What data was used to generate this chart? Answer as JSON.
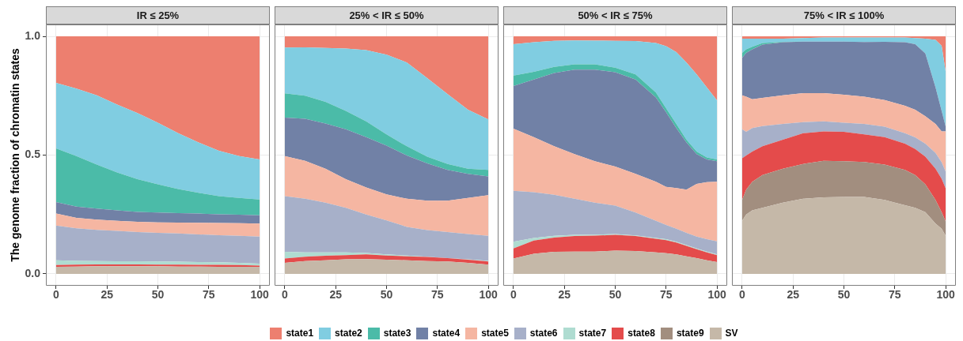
{
  "chart_data": [
    {
      "type": "area",
      "title": "IR ≤ 25%",
      "ylabel": "The genome fraction of chromatin states",
      "stacked": true,
      "grid": true,
      "legend": "bottom",
      "x": [
        0,
        10,
        20,
        30,
        40,
        50,
        60,
        70,
        80,
        90,
        100
      ],
      "xlim": [
        -5,
        105
      ],
      "xticks": [
        0,
        25,
        50,
        75,
        100
      ],
      "ylim": [
        -0.05,
        1.05
      ],
      "yticks": [
        {
          "value": 0,
          "label": "0.0"
        },
        0.5,
        {
          "value": 1,
          "label": "1.0"
        }
      ],
      "series": [
        {
          "name": "SV",
          "color": "#c5b8a8",
          "values": [
            0.03,
            0.031,
            0.032,
            0.032,
            0.032,
            0.032,
            0.031,
            0.031,
            0.03,
            0.03,
            0.03
          ]
        },
        {
          "name": "state8",
          "color": "#e44b4b",
          "values": [
            0.007,
            0.008,
            0.008,
            0.008,
            0.008,
            0.007,
            0.008,
            0.007,
            0.008,
            0.007,
            0.005
          ]
        },
        {
          "name": "state7",
          "color": "#afdcd1",
          "values": [
            0.02,
            0.016,
            0.014,
            0.013,
            0.013,
            0.013,
            0.012,
            0.012,
            0.011,
            0.009,
            0.008
          ]
        },
        {
          "name": "state6",
          "color": "#a7b0c9",
          "values": [
            0.146,
            0.137,
            0.131,
            0.128,
            0.123,
            0.121,
            0.119,
            0.116,
            0.114,
            0.114,
            0.114
          ]
        },
        {
          "name": "state5",
          "color": "#f5b6a2",
          "values": [
            0.051,
            0.044,
            0.043,
            0.042,
            0.043,
            0.044,
            0.046,
            0.049,
            0.051,
            0.053,
            0.055
          ]
        },
        {
          "name": "state4",
          "color": "#7181a6",
          "values": [
            0.048,
            0.047,
            0.047,
            0.044,
            0.042,
            0.041,
            0.04,
            0.039,
            0.037,
            0.036,
            0.035
          ]
        },
        {
          "name": "state3",
          "color": "#4bbba8",
          "values": [
            0.226,
            0.213,
            0.185,
            0.16,
            0.138,
            0.119,
            0.101,
            0.087,
            0.076,
            0.071,
            0.066
          ]
        },
        {
          "name": "state2",
          "color": "#80cde1",
          "values": [
            0.276,
            0.284,
            0.292,
            0.286,
            0.278,
            0.259,
            0.235,
            0.212,
            0.191,
            0.176,
            0.169
          ]
        },
        {
          "name": "state1",
          "color": "#ed7f6f",
          "values": [
            0.196,
            0.22,
            0.248,
            0.287,
            0.323,
            0.364,
            0.408,
            0.447,
            0.482,
            0.504,
            0.518
          ]
        }
      ]
    },
    {
      "type": "area",
      "title": "25% < IR ≤ 50%",
      "stacked": true,
      "grid": true,
      "tick_labels": "x",
      "x": [
        0,
        10,
        20,
        30,
        40,
        50,
        60,
        70,
        80,
        90,
        100
      ],
      "xlim": [
        -5,
        105
      ],
      "xticks": [
        0,
        25,
        50,
        75,
        100
      ],
      "ylim": [
        -0.05,
        1.05
      ],
      "yticks": [
        0,
        0.5,
        1
      ],
      "series": [
        {
          "name": "SV",
          "color": "#c5b8a8",
          "values": [
            0.046,
            0.054,
            0.057,
            0.061,
            0.062,
            0.06,
            0.057,
            0.054,
            0.052,
            0.046,
            0.039
          ]
        },
        {
          "name": "state8",
          "color": "#e44b4b",
          "values": [
            0.019,
            0.018,
            0.019,
            0.018,
            0.02,
            0.017,
            0.017,
            0.017,
            0.014,
            0.014,
            0.013
          ]
        },
        {
          "name": "state7",
          "color": "#afdcd1",
          "values": [
            0.028,
            0.018,
            0.014,
            0.011,
            0.006,
            0.005,
            0.003,
            0.001,
            0,
            0.001,
            0.003
          ]
        },
        {
          "name": "state6",
          "color": "#a7b0c9",
          "values": [
            0.234,
            0.226,
            0.21,
            0.188,
            0.162,
            0.143,
            0.121,
            0.112,
            0.11,
            0.107,
            0.105
          ]
        },
        {
          "name": "state5",
          "color": "#f5b6a2",
          "values": [
            0.169,
            0.16,
            0.143,
            0.121,
            0.114,
            0.11,
            0.118,
            0.124,
            0.132,
            0.152,
            0.171
          ]
        },
        {
          "name": "state4",
          "color": "#7181a6",
          "values": [
            0.162,
            0.177,
            0.19,
            0.21,
            0.212,
            0.205,
            0.182,
            0.157,
            0.13,
            0.101,
            0.079
          ]
        },
        {
          "name": "state3",
          "color": "#4bbba8",
          "values": [
            0.102,
            0.097,
            0.091,
            0.077,
            0.066,
            0.047,
            0.039,
            0.028,
            0.025,
            0.022,
            0.028
          ]
        },
        {
          "name": "state2",
          "color": "#80cde1",
          "values": [
            0.193,
            0.204,
            0.227,
            0.263,
            0.3,
            0.336,
            0.353,
            0.331,
            0.294,
            0.248,
            0.212
          ]
        },
        {
          "name": "state1",
          "color": "#ed7f6f",
          "values": [
            0.047,
            0.046,
            0.049,
            0.051,
            0.058,
            0.077,
            0.11,
            0.176,
            0.243,
            0.309,
            0.35
          ]
        }
      ]
    },
    {
      "type": "area",
      "title": "50% < IR ≤ 75%",
      "stacked": true,
      "grid": true,
      "tick_labels": "x",
      "x": [
        0,
        10,
        20,
        30,
        40,
        50,
        60,
        70,
        75,
        80,
        85,
        90,
        95,
        100
      ],
      "xlim": [
        -5,
        105
      ],
      "xticks": [
        0,
        25,
        50,
        75,
        100
      ],
      "ylim": [
        -0.05,
        1.05
      ],
      "yticks": [
        0,
        0.5,
        1
      ],
      "series": [
        {
          "name": "SV",
          "color": "#c5b8a8",
          "values": [
            0.065,
            0.085,
            0.093,
            0.094,
            0.094,
            0.098,
            0.096,
            0.09,
            0.087,
            0.082,
            0.074,
            0.066,
            0.057,
            0.05
          ]
        },
        {
          "name": "state8",
          "color": "#e44b4b",
          "values": [
            0.042,
            0.055,
            0.06,
            0.065,
            0.067,
            0.066,
            0.063,
            0.058,
            0.055,
            0.05,
            0.044,
            0.038,
            0.033,
            0.029
          ]
        },
        {
          "name": "state7",
          "color": "#afdcd1",
          "values": [
            0.028,
            0.011,
            0.007,
            0.005,
            0.004,
            0.004,
            0.003,
            0.003,
            0.004,
            0.003,
            0.003,
            0.003,
            0.004,
            0.003
          ]
        },
        {
          "name": "state6",
          "color": "#a7b0c9",
          "values": [
            0.215,
            0.193,
            0.173,
            0.152,
            0.135,
            0.119,
            0.096,
            0.072,
            0.06,
            0.055,
            0.052,
            0.05,
            0.052,
            0.055
          ]
        },
        {
          "name": "state5",
          "color": "#f5b6a2",
          "values": [
            0.261,
            0.232,
            0.204,
            0.188,
            0.174,
            0.165,
            0.163,
            0.165,
            0.16,
            0.171,
            0.182,
            0.222,
            0.24,
            0.251
          ]
        },
        {
          "name": "state4",
          "color": "#7181a6",
          "values": [
            0.18,
            0.242,
            0.309,
            0.356,
            0.386,
            0.397,
            0.397,
            0.355,
            0.314,
            0.253,
            0.198,
            0.125,
            0.096,
            0.086
          ]
        },
        {
          "name": "state3",
          "color": "#4bbba8",
          "values": [
            0.044,
            0.033,
            0.025,
            0.022,
            0.022,
            0.019,
            0.022,
            0.02,
            0.017,
            0.017,
            0.012,
            0.011,
            0.008,
            0.008
          ]
        },
        {
          "name": "state2",
          "color": "#80cde1",
          "values": [
            0.132,
            0.124,
            0.11,
            0.101,
            0.1,
            0.113,
            0.14,
            0.209,
            0.262,
            0.303,
            0.325,
            0.325,
            0.295,
            0.248
          ]
        },
        {
          "name": "state1",
          "color": "#ed7f6f",
          "values": [
            0.033,
            0.025,
            0.019,
            0.017,
            0.018,
            0.019,
            0.02,
            0.028,
            0.041,
            0.066,
            0.11,
            0.16,
            0.215,
            0.27
          ]
        }
      ]
    },
    {
      "type": "area",
      "title": "75% < IR ≤ 100%",
      "stacked": true,
      "grid": true,
      "tick_labels": "x",
      "x": [
        0,
        2,
        5,
        10,
        20,
        30,
        40,
        50,
        60,
        70,
        80,
        85,
        90,
        95,
        98,
        100
      ],
      "xlim": [
        -5,
        105
      ],
      "xticks": [
        0,
        25,
        50,
        75,
        100
      ],
      "ylim": [
        -0.05,
        1.05
      ],
      "yticks": [
        0,
        0.5,
        1
      ],
      "series": [
        {
          "name": "SV",
          "color": "#c5b8a8",
          "values": [
            0.223,
            0.25,
            0.267,
            0.278,
            0.3,
            0.316,
            0.322,
            0.324,
            0.324,
            0.311,
            0.289,
            0.278,
            0.26,
            0.212,
            0.19,
            0.16
          ]
        },
        {
          "name": "state9",
          "color": "#a28e7f",
          "values": [
            0.088,
            0.105,
            0.121,
            0.138,
            0.143,
            0.147,
            0.154,
            0.15,
            0.147,
            0.149,
            0.149,
            0.138,
            0.117,
            0.099,
            0.07,
            0.06
          ]
        },
        {
          "name": "state8",
          "color": "#e44b4b",
          "values": [
            0.176,
            0.143,
            0.127,
            0.121,
            0.122,
            0.129,
            0.124,
            0.124,
            0.116,
            0.116,
            0.11,
            0.11,
            0.116,
            0.132,
            0.14,
            0.14
          ]
        },
        {
          "name": "state6",
          "color": "#a7b0c9",
          "values": [
            0.122,
            0.1,
            0.099,
            0.085,
            0.066,
            0.047,
            0.042,
            0.038,
            0.044,
            0.044,
            0.044,
            0.049,
            0.055,
            0.066,
            0.07,
            0.07
          ]
        },
        {
          "name": "state5",
          "color": "#f5b6a2",
          "values": [
            0.143,
            0.148,
            0.121,
            0.119,
            0.121,
            0.122,
            0.119,
            0.118,
            0.115,
            0.112,
            0.116,
            0.116,
            0.116,
            0.122,
            0.13,
            0.17
          ]
        },
        {
          "name": "state4",
          "color": "#7181a6",
          "values": [
            0.158,
            0.184,
            0.21,
            0.224,
            0.223,
            0.217,
            0.217,
            0.224,
            0.23,
            0.245,
            0.267,
            0.276,
            0.264,
            0.154,
            0.086,
            0.02
          ]
        },
        {
          "name": "state3",
          "color": "#4bbba8",
          "values": [
            0.02,
            0.015,
            0.011,
            0.007,
            0.002,
            0,
            0,
            0,
            0,
            0,
            0,
            0,
            0,
            0,
            0,
            0
          ]
        },
        {
          "name": "state2",
          "color": "#80cde1",
          "values": [
            0.06,
            0.045,
            0.034,
            0.018,
            0.013,
            0.015,
            0.017,
            0.017,
            0.019,
            0.018,
            0.02,
            0.026,
            0.062,
            0.2,
            0.274,
            0.23
          ]
        },
        {
          "name": "state1",
          "color": "#ed7f6f",
          "values": [
            0.01,
            0.01,
            0.01,
            0.01,
            0.01,
            0.007,
            0.005,
            0.005,
            0.005,
            0.005,
            0.005,
            0.007,
            0.01,
            0.015,
            0.04,
            0.15
          ]
        }
      ]
    }
  ]
}
